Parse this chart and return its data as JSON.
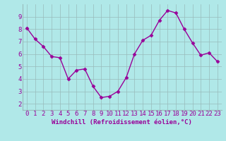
{
  "x": [
    0,
    1,
    2,
    3,
    4,
    5,
    6,
    7,
    8,
    9,
    10,
    11,
    12,
    13,
    14,
    15,
    16,
    17,
    18,
    19,
    20,
    21,
    22,
    23
  ],
  "y": [
    8.1,
    7.2,
    6.6,
    5.8,
    5.7,
    4.0,
    4.7,
    4.8,
    3.4,
    2.5,
    2.6,
    3.0,
    4.1,
    6.0,
    7.1,
    7.5,
    8.7,
    9.5,
    9.3,
    8.0,
    6.9,
    5.9,
    6.1,
    5.4
  ],
  "line_color": "#990099",
  "marker": "D",
  "marker_size": 2.5,
  "bg_color": "#b0e8e8",
  "grid_color": "#99bbbb",
  "xlabel": "Windchill (Refroidissement éolien,°C)",
  "ylabel": "",
  "xlim": [
    -0.5,
    23.5
  ],
  "ylim": [
    1.5,
    10.0
  ],
  "yticks": [
    2,
    3,
    4,
    5,
    6,
    7,
    8,
    9
  ],
  "xticks": [
    0,
    1,
    2,
    3,
    4,
    5,
    6,
    7,
    8,
    9,
    10,
    11,
    12,
    13,
    14,
    15,
    16,
    17,
    18,
    19,
    20,
    21,
    22,
    23
  ],
  "label_color": "#990099",
  "tick_label_color": "#990099",
  "font_size_xlabel": 6.5,
  "font_size_ticks": 6.5,
  "line_width": 1.0
}
